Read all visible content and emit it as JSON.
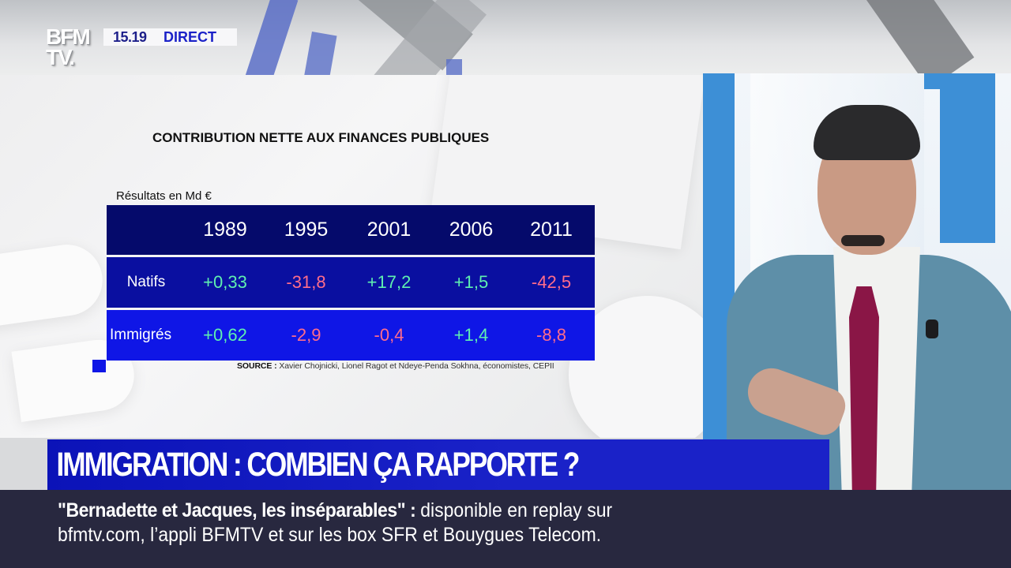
{
  "channel": {
    "logo_line1": "BFM",
    "logo_line2": "TV.",
    "time": "15.19",
    "live_label": "DIRECT"
  },
  "infographic": {
    "title": "CONTRIBUTION NETTE AUX FINANCES PUBLIQUES",
    "unit_label": "Résultats en Md €",
    "columns": [
      "",
      "1989",
      "1995",
      "2001",
      "2006",
      "2011"
    ],
    "rows": [
      {
        "label": "Natifs",
        "values": [
          "+0,33",
          "-31,8",
          "+17,2",
          "+1,5",
          "-42,5"
        ]
      },
      {
        "label": "Immigrés",
        "values": [
          "+0,62",
          "-2,9",
          "-0,4",
          "+1,4",
          "-8,8"
        ]
      }
    ],
    "source_label": "SOURCE :",
    "source_text": "Xavier Chojnicki, Lionel Ragot et Ndeye-Penda Sokhna, économistes, CEPII",
    "colors": {
      "header_bg": "#050a6b",
      "row1_bg": "#0a0fa0",
      "row2_bg": "#0f16e6",
      "positive": "#5ff0b0",
      "negative": "#ff6d8a"
    }
  },
  "chart_data": {
    "type": "table",
    "title": "CONTRIBUTION NETTE AUX FINANCES PUBLIQUES",
    "subtitle": "Résultats en Md €",
    "categories": [
      "1989",
      "1995",
      "2001",
      "2006",
      "2011"
    ],
    "series": [
      {
        "name": "Natifs",
        "values": [
          0.33,
          -31.8,
          17.2,
          1.5,
          -42.5
        ]
      },
      {
        "name": "Immigrés",
        "values": [
          0.62,
          -2.9,
          -0.4,
          1.4,
          -8.8
        ]
      }
    ],
    "source": "Xavier Chojnicki, Lionel Ragot et Ndeye-Penda Sokhna, économistes, CEPII"
  },
  "headline": {
    "text": "IMMIGRATION : COMBIEN ÇA RAPPORTE ?",
    "bg_color": "#1a22c8"
  },
  "ticker": {
    "bold_text": "\"Bernadette et Jacques, les inséparables\"",
    "separator": " : ",
    "line1_rest": "disponible en replay sur",
    "line2": "bfmtv.com, l’appli BFMTV et sur les box SFR et Bouygues Telecom.",
    "bg_color": "#28283f"
  }
}
